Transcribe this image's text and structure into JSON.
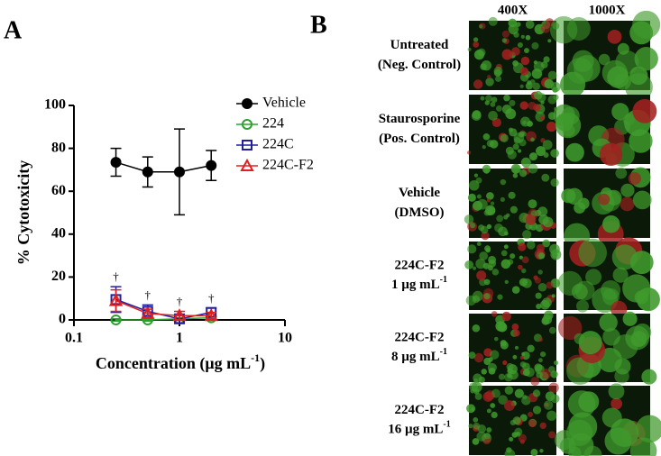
{
  "chart_data": {
    "type": "line",
    "panel": "A",
    "x": [
      0.25,
      0.5,
      1,
      2
    ],
    "xscale": "log",
    "xlim": [
      0.1,
      10
    ],
    "xticks": [
      0.1,
      1,
      10
    ],
    "ylim": [
      0,
      100
    ],
    "yticks": [
      0,
      20,
      40,
      60,
      80,
      100
    ],
    "xlabel": {
      "text": "Concentration (μg mL",
      "sup": "-1",
      "end": ")"
    },
    "ylabel": "% Cytotoxicity",
    "legend": "top-right",
    "series": [
      {
        "name": "Vehicle",
        "color": "#000000",
        "marker": "filled-circle",
        "values": [
          73.5,
          69,
          69,
          72
        ],
        "errors": [
          6.5,
          7,
          20,
          7
        ]
      },
      {
        "name": "224",
        "color": "#2ca02c",
        "marker": "circle",
        "values": [
          0,
          0,
          0.5,
          1
        ],
        "errors": [
          0.5,
          0.5,
          0.5,
          0.5
        ]
      },
      {
        "name": "224C",
        "color": "#1f1fa0",
        "marker": "square",
        "values": [
          9.5,
          4,
          0.5,
          3.5
        ],
        "errors": [
          6,
          3,
          2,
          2
        ]
      },
      {
        "name": "224C-F2",
        "color": "#e02020",
        "marker": "triangle",
        "values": [
          9,
          3,
          2,
          2
        ],
        "errors": [
          5,
          2,
          2,
          1.5
        ]
      }
    ],
    "annotations": [
      "†",
      "†",
      "†",
      "†"
    ]
  },
  "panel_b": {
    "letter": "B",
    "columns": [
      "400X",
      "1000X"
    ],
    "rows": [
      {
        "lines": [
          "Untreated",
          "(Neg.  Control)"
        ]
      },
      {
        "lines": [
          "Staurosporine",
          "(Pos. Control)"
        ]
      },
      {
        "lines": [
          "Vehicle",
          "(DMSO)"
        ]
      },
      {
        "lines": [
          "224C-F2"
        ],
        "unit": "1 µg mL",
        "sup": "-1"
      },
      {
        "lines": [
          "224C-F2"
        ],
        "unit": "8 µg mL",
        "sup": "-1"
      },
      {
        "lines": [
          "224C-F2"
        ],
        "unit": "16 µg mL",
        "sup": "-1"
      }
    ]
  }
}
